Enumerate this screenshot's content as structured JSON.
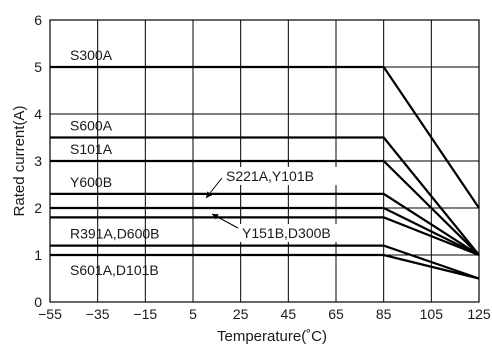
{
  "chart_data": {
    "type": "line",
    "title": "",
    "xlabel": "Temperature(˚C)",
    "ylabel": "Rated current(A)",
    "xlim": [
      -55,
      125
    ],
    "ylim": [
      0,
      6
    ],
    "x_ticks": [
      "−55",
      "−35",
      "−15",
      "5",
      "25",
      "45",
      "65",
      "85",
      "105",
      "125"
    ],
    "y_ticks": [
      "0",
      "1",
      "2",
      "3",
      "4",
      "5",
      "6"
    ],
    "grid": true,
    "series": [
      {
        "name": "S300A",
        "x": [
          -55,
          85,
          125
        ],
        "y": [
          5.0,
          5.0,
          2.0
        ]
      },
      {
        "name": "S600A",
        "x": [
          -55,
          85,
          125
        ],
        "y": [
          3.5,
          3.5,
          1.0
        ]
      },
      {
        "name": "S101A",
        "x": [
          -55,
          85,
          125
        ],
        "y": [
          3.0,
          3.0,
          1.0
        ]
      },
      {
        "name": "Y600B",
        "x": [
          -55,
          85,
          125
        ],
        "y": [
          2.3,
          2.3,
          1.0
        ]
      },
      {
        "name": "S221A,Y101B",
        "x": [
          -55,
          85,
          125
        ],
        "y": [
          2.0,
          2.0,
          1.0
        ]
      },
      {
        "name": "Y151B,D300B",
        "x": [
          -55,
          85,
          125
        ],
        "y": [
          1.8,
          1.8,
          1.0
        ]
      },
      {
        "name": "R391A,D600B",
        "x": [
          -55,
          85,
          125
        ],
        "y": [
          1.2,
          1.2,
          0.5
        ]
      },
      {
        "name": "S601A,D101B",
        "x": [
          -55,
          85,
          125
        ],
        "y": [
          1.0,
          1.0,
          0.5
        ]
      }
    ]
  }
}
